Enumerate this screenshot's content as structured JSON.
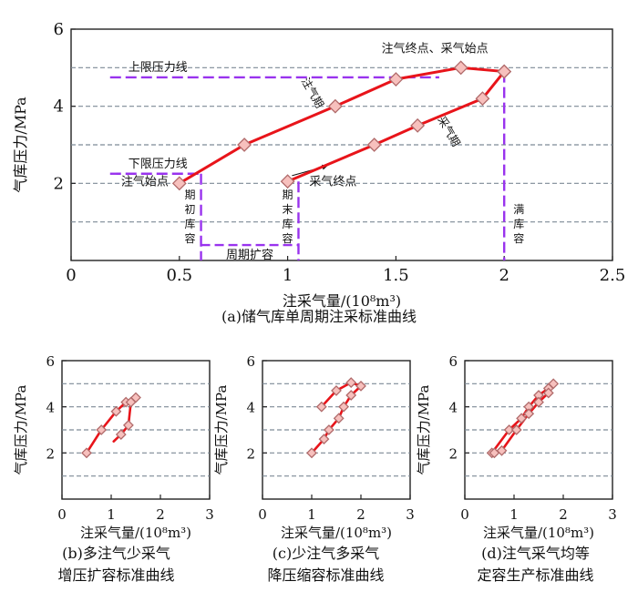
{
  "colors": {
    "curve": "#e8141a",
    "marker_fill": "#f7c0bd",
    "marker_stroke": "#b06a6a",
    "guide": "#9933ee",
    "grid": "#7d8a96"
  },
  "chart_data": [
    {
      "id": "a",
      "type": "line",
      "caption": "(a)储气库单周期注采标准曲线",
      "xlabel": "注采气量/(10⁸m³)",
      "ylabel": "气库压力/MPa",
      "xlim": [
        0,
        2.5
      ],
      "ylim": [
        0,
        6
      ],
      "xticks": [
        0,
        0.5,
        1,
        1.5,
        2,
        2.5
      ],
      "xtick_labels": [
        "0",
        "0.5",
        "1",
        "1.5",
        "2",
        "2.5"
      ],
      "yticks": [
        2,
        4,
        6
      ],
      "ytick_labels": [
        "2",
        "4",
        "6"
      ],
      "grid_y": [
        1,
        2,
        3,
        4,
        5
      ],
      "grid": "horizontal dashed",
      "series": [
        {
          "values": [
            [
              0.5,
              2
            ],
            [
              0.8,
              3
            ],
            [
              1.22,
              4
            ],
            [
              1.5,
              4.7
            ],
            [
              1.8,
              5
            ],
            [
              2.0,
              4.9
            ]
          ]
        },
        {
          "values": [
            [
              2.0,
              4.9
            ],
            [
              1.9,
              4.2
            ],
            [
              1.6,
              3.5
            ],
            [
              1.4,
              3.0
            ],
            [
              1.0,
              2.05
            ]
          ]
        }
      ],
      "reference_lines": [
        {
          "label": "上限压力线",
          "y": 4.75,
          "x_range": [
            0.18,
            1.7
          ]
        },
        {
          "label": "下限压力线",
          "y": 2.25,
          "x_range": [
            0.18,
            0.6
          ]
        }
      ],
      "verticals": [
        {
          "x": 0.6,
          "y_top": 2.25,
          "label": "期初库容"
        },
        {
          "x": 1.05,
          "y_top": 2.05,
          "label": "期末库容"
        },
        {
          "x": 2.0,
          "y_top": 4.9,
          "label": "满库容"
        }
      ],
      "bracket": {
        "x_range": [
          0.6,
          1.05
        ],
        "y": 0.4,
        "label": "周期扩容"
      },
      "annotations": {
        "inject_end": "注气终点、采气始点",
        "inject_start": "注气始点",
        "produce_end": "采气终点",
        "inject_period": "注气期",
        "produce_period": "采气期"
      }
    },
    {
      "id": "b",
      "type": "line",
      "caption": [
        "(b)多注气少采气",
        "增压扩容标准曲线"
      ],
      "xlabel": "注采气量/(10⁸m³)",
      "ylabel": "气库压力/MPa",
      "xlim": [
        0,
        3
      ],
      "ylim": [
        0,
        6
      ],
      "xticks": [
        0,
        1,
        2,
        3
      ],
      "yticks": [
        2,
        4,
        6
      ],
      "grid_y": [
        1,
        2,
        3,
        4,
        5
      ],
      "series": [
        {
          "values": [
            [
              0.5,
              2
            ],
            [
              0.8,
              3
            ],
            [
              1.1,
              3.8
            ],
            [
              1.3,
              4.2
            ],
            [
              1.5,
              4.4
            ],
            [
              1.4,
              4.2
            ],
            [
              1.35,
              3.2
            ],
            [
              1.2,
              2.8
            ],
            [
              1.05,
              2.5
            ]
          ]
        }
      ]
    },
    {
      "id": "c",
      "type": "line",
      "caption": [
        "(c)少注气多采气",
        "降压缩容标准曲线"
      ],
      "xlabel": "注采气量/(10⁸m³)",
      "ylabel": "气库压力/MPa",
      "xlim": [
        0,
        3
      ],
      "ylim": [
        0,
        6
      ],
      "xticks": [
        0,
        1,
        2,
        3
      ],
      "yticks": [
        2,
        4,
        6
      ],
      "grid_y": [
        1,
        2,
        3,
        4,
        5
      ],
      "series": [
        {
          "values": [
            [
              1.0,
              2
            ],
            [
              1.25,
              2.6
            ],
            [
              1.35,
              3
            ],
            [
              1.55,
              3.5
            ],
            [
              1.65,
              4
            ],
            [
              1.8,
              4.5
            ],
            [
              2.0,
              4.9
            ],
            [
              1.8,
              5.05
            ],
            [
              1.5,
              4.7
            ],
            [
              1.2,
              4
            ]
          ]
        }
      ]
    },
    {
      "id": "d",
      "type": "line",
      "caption": [
        "(d)注气采气均等",
        "定容生产标准曲线"
      ],
      "xlabel": "注采气量/(10⁸m³)",
      "ylabel": "气库压力/MPa",
      "xlim": [
        0,
        3
      ],
      "ylim": [
        0,
        6
      ],
      "xticks": [
        0,
        1,
        2,
        3
      ],
      "yticks": [
        2,
        4,
        6
      ],
      "grid_y": [
        1,
        2,
        3,
        4,
        5
      ],
      "series": [
        {
          "values": [
            [
              0.55,
              2
            ],
            [
              0.9,
              3
            ],
            [
              1.15,
              3.5
            ],
            [
              1.3,
              4
            ],
            [
              1.5,
              4.5
            ],
            [
              1.7,
              4.8
            ],
            [
              1.8,
              5
            ],
            [
              1.7,
              4.6
            ],
            [
              1.5,
              4.2
            ],
            [
              1.3,
              3.7
            ],
            [
              1.05,
              3.0
            ],
            [
              0.75,
              2.1
            ],
            [
              0.6,
              2
            ]
          ]
        }
      ]
    }
  ]
}
